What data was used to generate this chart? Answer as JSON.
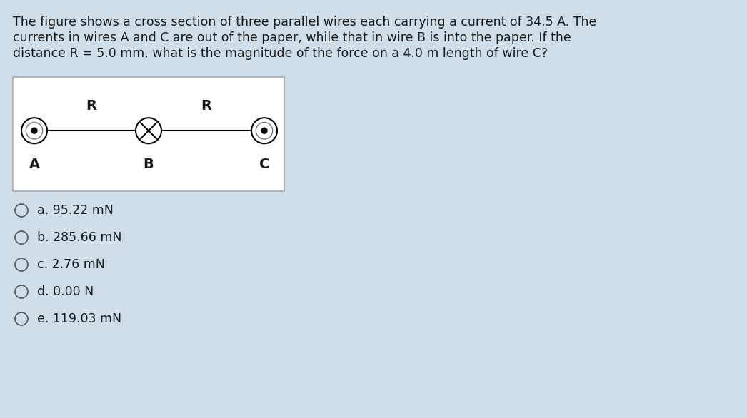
{
  "background_color": "#cfdee9",
  "question_text_line1": "The figure shows a cross section of three parallel wires each carrying a current of 34.5 A. The",
  "question_text_line2": "currents in wires A and C are out of the paper, while that in wire B is into the paper. If the",
  "question_text_line3": "distance R = 5.0 mm, what is the magnitude of the force on a 4.0 m length of wire C?",
  "diagram_bg": "#ffffff",
  "wire_A_label": "A",
  "wire_B_label": "B",
  "wire_C_label": "C",
  "R_label": "R",
  "choices": [
    "a. 95.22 mN",
    "b. 285.66 mN",
    "c. 2.76 mN",
    "d. 0.00 N",
    "e. 119.03 mN"
  ],
  "text_color": "#1a1a1a",
  "question_fontsize": 12.5,
  "choice_fontsize": 12.5,
  "label_fontsize": 14,
  "R_fontsize": 14
}
